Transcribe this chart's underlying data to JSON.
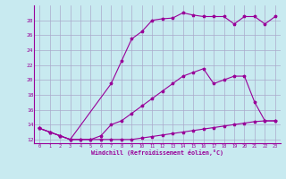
{
  "xlabel": "Windchill (Refroidissement éolien,°C)",
  "bg_color": "#c8eaf0",
  "grid_color": "#aaaacc",
  "line_color": "#990099",
  "xlim": [
    -0.5,
    23.5
  ],
  "ylim": [
    11.5,
    30
  ],
  "yticks": [
    12,
    14,
    16,
    18,
    20,
    22,
    24,
    26,
    28
  ],
  "xticks": [
    0,
    1,
    2,
    3,
    4,
    5,
    6,
    7,
    8,
    9,
    10,
    11,
    12,
    13,
    14,
    15,
    16,
    17,
    18,
    19,
    20,
    21,
    22,
    23
  ],
  "line1_x": [
    0,
    1,
    2,
    3,
    4,
    5,
    6,
    7,
    8,
    9,
    10,
    11,
    12,
    13,
    14,
    15,
    16,
    17,
    18,
    19,
    20,
    21,
    22,
    23
  ],
  "line1_y": [
    13.5,
    13.0,
    12.5,
    12.0,
    12.0,
    12.0,
    12.0,
    12.0,
    12.0,
    12.0,
    12.2,
    12.4,
    12.6,
    12.8,
    13.0,
    13.2,
    13.4,
    13.6,
    13.8,
    14.0,
    14.2,
    14.4,
    14.5,
    14.5
  ],
  "line2_x": [
    0,
    1,
    2,
    3,
    4,
    5,
    6,
    7,
    8,
    9,
    10,
    11,
    12,
    13,
    14,
    15,
    16,
    17,
    18,
    19,
    20,
    21,
    22,
    23
  ],
  "line2_y": [
    13.5,
    13.0,
    12.5,
    12.0,
    12.0,
    12.0,
    12.5,
    14.0,
    14.5,
    15.5,
    16.5,
    17.5,
    18.5,
    19.5,
    20.5,
    21.0,
    21.5,
    19.5,
    20.0,
    20.5,
    20.5,
    17.0,
    14.5,
    14.5
  ],
  "line3_x": [
    0,
    1,
    2,
    3,
    7,
    8,
    9,
    10,
    11,
    12,
    13,
    14,
    15,
    16,
    17,
    18,
    19,
    20,
    21,
    22,
    23
  ],
  "line3_y": [
    13.5,
    13.0,
    12.5,
    12.0,
    19.5,
    22.5,
    25.5,
    26.5,
    28.0,
    28.2,
    28.3,
    29.0,
    28.7,
    28.5,
    28.5,
    28.5,
    27.5,
    28.5,
    28.5,
    27.5,
    28.5
  ]
}
